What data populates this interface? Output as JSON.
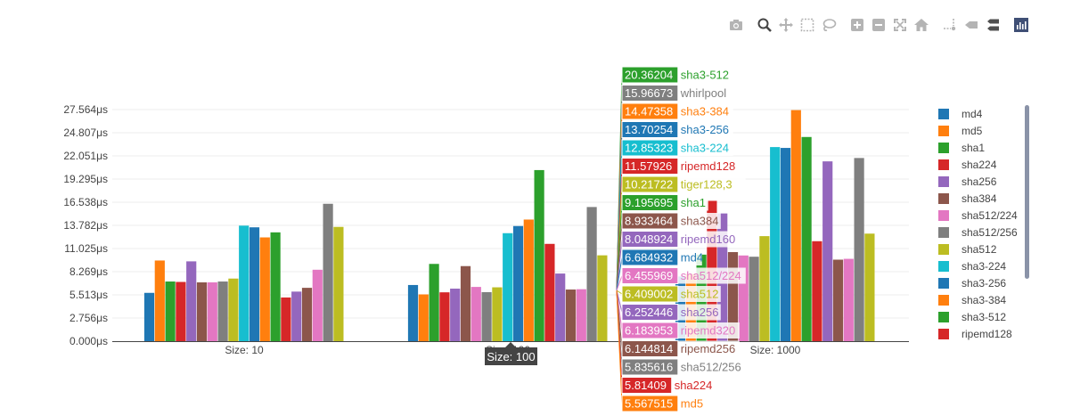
{
  "toolbar": {
    "buttons": [
      {
        "icon": "camera-icon"
      },
      {
        "icon": "zoom-icon"
      },
      {
        "icon": "pan-icon"
      },
      {
        "icon": "box-select-icon"
      },
      {
        "icon": "lasso-select-icon"
      },
      {
        "icon": "zoom-in-icon"
      },
      {
        "icon": "zoom-out-icon"
      },
      {
        "icon": "autoscale-icon"
      },
      {
        "icon": "reset-axes-icon"
      },
      {
        "icon": "spike-lines-icon"
      },
      {
        "icon": "hover-closest-icon"
      },
      {
        "icon": "hover-compare-icon"
      },
      {
        "icon": "plotly-logo-icon"
      }
    ]
  },
  "chart_data": {
    "type": "bar",
    "categories": [
      "Size: 10",
      "Size: 100",
      "Size: 1000"
    ],
    "ytick_labels": [
      "0.000μs",
      "2.756μs",
      "5.513μs",
      "8.269μs",
      "11.025μs",
      "13.782μs",
      "16.538μs",
      "19.295μs",
      "22.051μs",
      "24.807μs",
      "27.564μs"
    ],
    "ylim": [
      0,
      27.564
    ],
    "grid": true,
    "legend_position": "right",
    "series": [
      {
        "name": "md4",
        "color": "#1f77b4",
        "values": [
          5.75,
          6.684932,
          7.7
        ]
      },
      {
        "name": "md5",
        "color": "#ff7f0e",
        "values": [
          9.6,
          5.567515,
          8.0
        ]
      },
      {
        "name": "sha1",
        "color": "#2ca02c",
        "values": [
          7.1,
          9.195695,
          10.3
        ]
      },
      {
        "name": "sha224",
        "color": "#d62728",
        "values": [
          7.05,
          5.81409,
          16.7
        ]
      },
      {
        "name": "sha256",
        "color": "#9467bd",
        "values": [
          9.5,
          6.252446,
          15.2
        ]
      },
      {
        "name": "sha384",
        "color": "#8c564b",
        "values": [
          7.0,
          8.933464,
          10.6
        ]
      },
      {
        "name": "sha512/224",
        "color": "#e377c2",
        "values": [
          7.0,
          6.455969,
          10.2
        ]
      },
      {
        "name": "sha512/256",
        "color": "#7f7f7f",
        "values": [
          7.1,
          5.835616,
          10.05
        ]
      },
      {
        "name": "sha512",
        "color": "#bcbd22",
        "values": [
          7.45,
          6.409002,
          12.5
        ]
      },
      {
        "name": "sha3-224",
        "color": "#17becf",
        "values": [
          13.75,
          12.85323,
          23.1
        ]
      },
      {
        "name": "sha3-256",
        "color": "#1f77b4",
        "values": [
          13.55,
          13.70254,
          23.0
        ]
      },
      {
        "name": "sha3-384",
        "color": "#ff7f0e",
        "values": [
          12.35,
          14.47358,
          27.5
        ]
      },
      {
        "name": "sha3-512",
        "color": "#2ca02c",
        "values": [
          12.95,
          20.36204,
          24.3
        ]
      },
      {
        "name": "ripemd128",
        "color": "#d62728",
        "values": [
          5.2,
          11.57926,
          11.9
        ]
      },
      {
        "name": "ripemd160",
        "color": "#9467bd",
        "values": [
          5.9,
          8.048924,
          21.4
        ]
      },
      {
        "name": "ripemd256",
        "color": "#8c564b",
        "values": [
          6.35,
          6.144814,
          9.7
        ]
      },
      {
        "name": "ripemd320",
        "color": "#e377c2",
        "values": [
          8.5,
          6.183953,
          9.8
        ]
      },
      {
        "name": "whirlpool",
        "color": "#7f7f7f",
        "values": [
          16.35,
          15.96673,
          21.8
        ]
      },
      {
        "name": "tiger128,3",
        "color": "#bcbd22",
        "values": [
          13.6,
          10.21722,
          12.8
        ]
      }
    ],
    "hover": {
      "x_label": "Size: 100",
      "entries": [
        {
          "value": "20.36204",
          "name": "sha3-512",
          "color": "#2ca02c"
        },
        {
          "value": "15.96673",
          "name": "whirlpool",
          "color": "#7f7f7f"
        },
        {
          "value": "14.47358",
          "name": "sha3-384",
          "color": "#ff7f0e"
        },
        {
          "value": "13.70254",
          "name": "sha3-256",
          "color": "#1f77b4"
        },
        {
          "value": "12.85323",
          "name": "sha3-224",
          "color": "#17becf"
        },
        {
          "value": "11.57926",
          "name": "ripemd128",
          "color": "#d62728"
        },
        {
          "value": "10.21722",
          "name": "tiger128,3",
          "color": "#bcbd22"
        },
        {
          "value": "9.195695",
          "name": "sha1",
          "color": "#2ca02c"
        },
        {
          "value": "8.933464",
          "name": "sha384",
          "color": "#8c564b"
        },
        {
          "value": "8.048924",
          "name": "ripemd160",
          "color": "#9467bd"
        },
        {
          "value": "6.684932",
          "name": "md4",
          "color": "#1f77b4"
        },
        {
          "value": "6.455969",
          "name": "sha512/224",
          "color": "#e377c2"
        },
        {
          "value": "6.409002",
          "name": "sha512",
          "color": "#bcbd22"
        },
        {
          "value": "6.252446",
          "name": "sha256",
          "color": "#9467bd"
        },
        {
          "value": "6.183953",
          "name": "ripemd320",
          "color": "#e377c2"
        },
        {
          "value": "6.144814",
          "name": "ripemd256",
          "color": "#8c564b"
        },
        {
          "value": "5.835616",
          "name": "sha512/256",
          "color": "#7f7f7f"
        },
        {
          "value": "5.81409",
          "name": "sha224",
          "color": "#d62728"
        },
        {
          "value": "5.567515",
          "name": "md5",
          "color": "#ff7f0e"
        }
      ]
    }
  }
}
